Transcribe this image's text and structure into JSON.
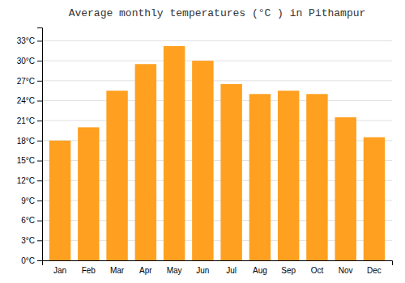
{
  "chart_data": {
    "type": "bar",
    "title": "Average monthly temperatures (°C ) in Pithampur",
    "categories": [
      "Jan",
      "Feb",
      "Mar",
      "Apr",
      "May",
      "Jun",
      "Jul",
      "Aug",
      "Sep",
      "Oct",
      "Nov",
      "Dec"
    ],
    "values": [
      18.0,
      20.0,
      25.5,
      29.5,
      32.2,
      30.0,
      26.5,
      25.0,
      25.5,
      25.0,
      21.5,
      18.5
    ],
    "color": "#FFA020",
    "ylim": [
      0,
      35
    ],
    "yticks": [
      {
        "value": 0,
        "label": "0°C"
      },
      {
        "value": 3,
        "label": "3°C"
      },
      {
        "value": 6,
        "label": "6°C"
      },
      {
        "value": 9,
        "label": "9°C"
      },
      {
        "value": 12,
        "label": "12°C"
      },
      {
        "value": 15,
        "label": "15°C"
      },
      {
        "value": 18,
        "label": "18°C"
      },
      {
        "value": 21,
        "label": "21°C"
      },
      {
        "value": 24,
        "label": "24°C"
      },
      {
        "value": 27,
        "label": "27°C"
      },
      {
        "value": 30,
        "label": "30°C"
      },
      {
        "value": 33,
        "label": "33°C"
      }
    ],
    "grid": true
  }
}
